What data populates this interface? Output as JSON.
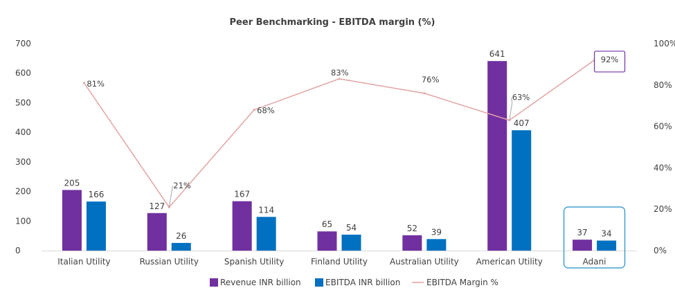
{
  "colors": {
    "revenue": "#7030A0",
    "ebitda": "#0070C0",
    "margin": "#E3A3A3",
    "highlight_box": "#1F8DC8",
    "highlight_label": "#7030A0",
    "leader": "#A6A6A6"
  },
  "chart_data": {
    "type": "bar",
    "title": "Peer Benchmarking - EBITDA margin (%)",
    "categories": [
      "Italian Utility",
      "Russian Utility",
      "Spanish Utility",
      "Finland Utility",
      "Australian Utility",
      "American Utility",
      "Adani"
    ],
    "series": [
      {
        "name": "Revenue INR billion",
        "type": "bar",
        "axis": "left",
        "values": [
          205,
          127,
          167,
          65,
          52,
          641,
          37
        ]
      },
      {
        "name": "EBITDA INR billion",
        "type": "bar",
        "axis": "left",
        "values": [
          166,
          26,
          114,
          54,
          39,
          407,
          34
        ]
      },
      {
        "name": "EBITDA Margin %",
        "type": "line",
        "axis": "right",
        "values": [
          81,
          21,
          68,
          83,
          76,
          63,
          92
        ]
      }
    ],
    "margin_labels": [
      "81%",
      "21%",
      "68%",
      "83%",
      "76%",
      "63%",
      "92%"
    ],
    "ylim": [
      0,
      700
    ],
    "yticks": [
      0,
      100,
      200,
      300,
      400,
      500,
      600,
      700
    ],
    "y2lim": [
      0,
      100
    ],
    "y2ticks": [
      "0%",
      "20%",
      "40%",
      "60%",
      "80%",
      "100%"
    ],
    "y2tick_values": [
      0,
      20,
      40,
      60,
      80,
      100
    ],
    "highlight_category": "Adani",
    "legend_position": "bottom"
  }
}
